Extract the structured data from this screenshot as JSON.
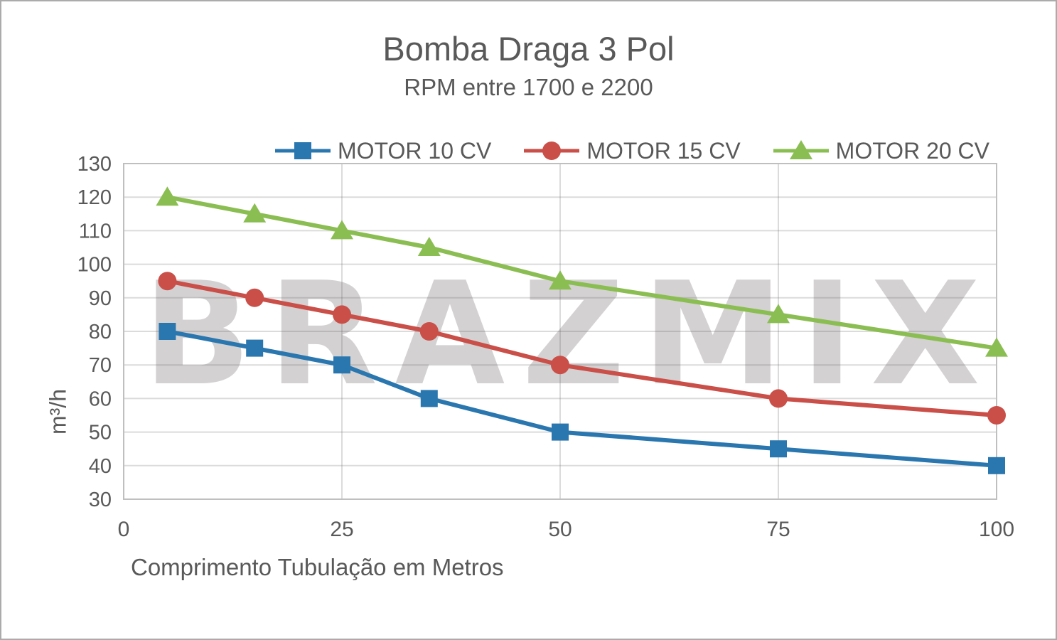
{
  "frame": {
    "background": "#FFFFFF",
    "border_color": "#ABABAB"
  },
  "chart_data": {
    "type": "line",
    "title": "Bomba Draga 3 Pol",
    "subtitle": "RPM entre 1700 e 2200",
    "xlabel": "Comprimento Tubulação em Metros",
    "ylabel": "m³/h",
    "watermark": "BRAZMIX",
    "x": [
      5,
      15,
      25,
      35,
      50,
      75,
      100
    ],
    "series": [
      {
        "name": "MOTOR 10 CV",
        "color": "#2A77AF",
        "marker": "square",
        "values": [
          80,
          75,
          70,
          60,
          50,
          45,
          40
        ]
      },
      {
        "name": "MOTOR 15 CV",
        "color": "#C94F48",
        "marker": "circle",
        "values": [
          95,
          90,
          85,
          80,
          70,
          60,
          55
        ]
      },
      {
        "name": "MOTOR 20 CV",
        "color": "#8BBE52",
        "marker": "triangle",
        "values": [
          120,
          115,
          110,
          105,
          95,
          85,
          75
        ]
      }
    ],
    "xlim": [
      0,
      100
    ],
    "ylim": [
      30,
      130
    ],
    "y_tick_step": 10,
    "x_ticks": [
      0,
      25,
      50,
      75,
      100
    ],
    "grid": true,
    "legend_position": "top",
    "style": {
      "text_color": "#595959",
      "grid_color": "rgba(89,89,89,0.22)",
      "axis_border_color": "#BFBFBF",
      "watermark_color": "#D4D1D2"
    }
  }
}
